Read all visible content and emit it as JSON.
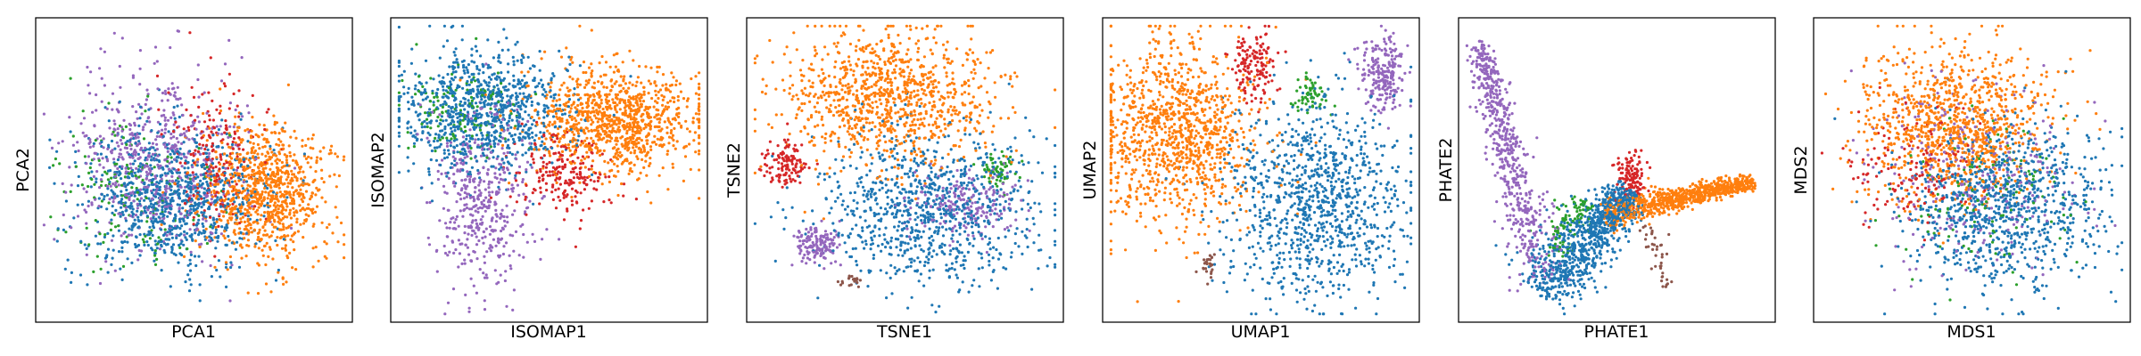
{
  "colors": {
    "blue": "#1f77b4",
    "orange": "#ff7f0e",
    "green": "#2ca02c",
    "red": "#d62728",
    "purple": "#9467bd",
    "brown": "#8c564b"
  },
  "chart_data": [
    {
      "type": "scatter",
      "xlabel": "PCA1",
      "ylabel": "PCA2",
      "grid": false,
      "legend": "none",
      "xlim": [
        0,
        100
      ],
      "ylim": [
        0,
        100
      ],
      "clusters": [
        {
          "color": "blue",
          "cx": 42,
          "cy": 40,
          "sx": 15,
          "sy": 12,
          "n": 900
        },
        {
          "color": "purple",
          "cx": 38,
          "cy": 52,
          "sx": 14,
          "sy": 16,
          "n": 600
        },
        {
          "color": "green",
          "cx": 30,
          "cy": 42,
          "sx": 13,
          "sy": 12,
          "n": 150
        },
        {
          "color": "red",
          "cx": 57,
          "cy": 55,
          "sx": 7,
          "sy": 12,
          "n": 200
        },
        {
          "color": "orange",
          "cx": 74,
          "cy": 42,
          "sx": 10,
          "sy": 11,
          "n": 900
        }
      ]
    },
    {
      "type": "scatter",
      "xlabel": "ISOMAP1",
      "ylabel": "ISOMAP2",
      "grid": false,
      "legend": "none",
      "xlim": [
        0,
        100
      ],
      "ylim": [
        0,
        100
      ],
      "clusters": [
        {
          "color": "blue",
          "cx": 28,
          "cy": 70,
          "sx": 14,
          "sy": 10,
          "n": 900
        },
        {
          "color": "purple",
          "cx": 28,
          "cy": 40,
          "sx": 8,
          "sy": 15,
          "n": 450
        },
        {
          "color": "green",
          "cx": 22,
          "cy": 70,
          "sx": 10,
          "sy": 8,
          "n": 130
        },
        {
          "color": "red",
          "cx": 55,
          "cy": 48,
          "sx": 8,
          "sy": 7,
          "n": 200
        },
        {
          "color": "orange",
          "cx": 72,
          "cy": 67,
          "sx": 13,
          "sy": 9,
          "n": 1000
        }
      ]
    },
    {
      "type": "scatter",
      "xlabel": "TSNE1",
      "ylabel": "TSNE2",
      "grid": false,
      "legend": "none",
      "xlim": [
        0,
        100
      ],
      "ylim": [
        0,
        100
      ],
      "clusters": [
        {
          "color": "orange",
          "cx": 45,
          "cy": 75,
          "sx": 18,
          "sy": 12,
          "n": 1000
        },
        {
          "color": "blue",
          "cx": 58,
          "cy": 37,
          "sx": 18,
          "sy": 13,
          "n": 900
        },
        {
          "color": "purple",
          "cx": 22,
          "cy": 25,
          "sx": 4,
          "sy": 3,
          "n": 150
        },
        {
          "color": "purple",
          "cx": 70,
          "cy": 38,
          "sx": 10,
          "sy": 6,
          "n": 200
        },
        {
          "color": "red",
          "cx": 11,
          "cy": 52,
          "sx": 4,
          "sy": 3.5,
          "n": 120
        },
        {
          "color": "green",
          "cx": 80,
          "cy": 50,
          "sx": 3,
          "sy": 3,
          "n": 60
        },
        {
          "color": "brown",
          "cx": 32,
          "cy": 12,
          "sx": 2,
          "sy": 1.2,
          "n": 20
        }
      ]
    },
    {
      "type": "scatter",
      "xlabel": "UMAP1",
      "ylabel": "UMAP2",
      "grid": false,
      "legend": "none",
      "xlim": [
        0,
        100
      ],
      "ylim": [
        0,
        100
      ],
      "clusters": [
        {
          "color": "orange",
          "cx": 22,
          "cy": 62,
          "sx": 13,
          "sy": 15,
          "n": 1100
        },
        {
          "color": "blue",
          "cx": 68,
          "cy": 40,
          "sx": 15,
          "sy": 17,
          "n": 1000
        },
        {
          "color": "purple",
          "cx": 90,
          "cy": 83,
          "sx": 3.5,
          "sy": 7,
          "n": 220
        },
        {
          "color": "red",
          "cx": 48,
          "cy": 86,
          "sx": 3.5,
          "sy": 6,
          "n": 150
        },
        {
          "color": "green",
          "cx": 66,
          "cy": 75,
          "sx": 3,
          "sy": 3,
          "n": 60
        },
        {
          "color": "brown",
          "cx": 33,
          "cy": 17,
          "sx": 1.2,
          "sy": 3,
          "n": 25
        }
      ]
    },
    {
      "type": "scatter",
      "xlabel": "PHATE1",
      "ylabel": "PHATE2",
      "grid": false,
      "legend": "none",
      "xlim": [
        0,
        100
      ],
      "ylim": [
        0,
        100
      ],
      "arms": [
        {
          "color": "purple",
          "from": [
            26,
            10
          ],
          "to": [
            5,
            94
          ],
          "spread": 4,
          "n": 600
        },
        {
          "color": "orange",
          "from": [
            45,
            35
          ],
          "to": [
            95,
            46
          ],
          "spread": 2.5,
          "n": 800
        },
        {
          "color": "blue",
          "from": [
            24,
            8
          ],
          "to": [
            55,
            43
          ],
          "spread": 6,
          "n": 900
        },
        {
          "color": "green",
          "from": [
            28,
            20
          ],
          "to": [
            40,
            40
          ],
          "spread": 4,
          "n": 100
        },
        {
          "color": "brown",
          "from": [
            60,
            32
          ],
          "to": [
            66,
            10
          ],
          "spread": 2,
          "n": 40
        }
      ],
      "clusters": [
        {
          "color": "red",
          "cx": 55,
          "cy": 48,
          "sx": 2.5,
          "sy": 4,
          "n": 120
        }
      ]
    },
    {
      "type": "scatter",
      "xlabel": "MDS1",
      "ylabel": "MDS2",
      "grid": false,
      "legend": "none",
      "xlim": [
        0,
        100
      ],
      "ylim": [
        0,
        100
      ],
      "clusters": [
        {
          "color": "orange",
          "cx": 45,
          "cy": 66,
          "sx": 15,
          "sy": 13,
          "n": 1000
        },
        {
          "color": "blue",
          "cx": 62,
          "cy": 38,
          "sx": 16,
          "sy": 14,
          "n": 900
        },
        {
          "color": "purple",
          "cx": 50,
          "cy": 48,
          "sx": 17,
          "sy": 15,
          "n": 300
        },
        {
          "color": "red",
          "cx": 30,
          "cy": 50,
          "sx": 10,
          "sy": 10,
          "n": 150
        },
        {
          "color": "green",
          "cx": 55,
          "cy": 44,
          "sx": 16,
          "sy": 14,
          "n": 120
        }
      ]
    }
  ]
}
